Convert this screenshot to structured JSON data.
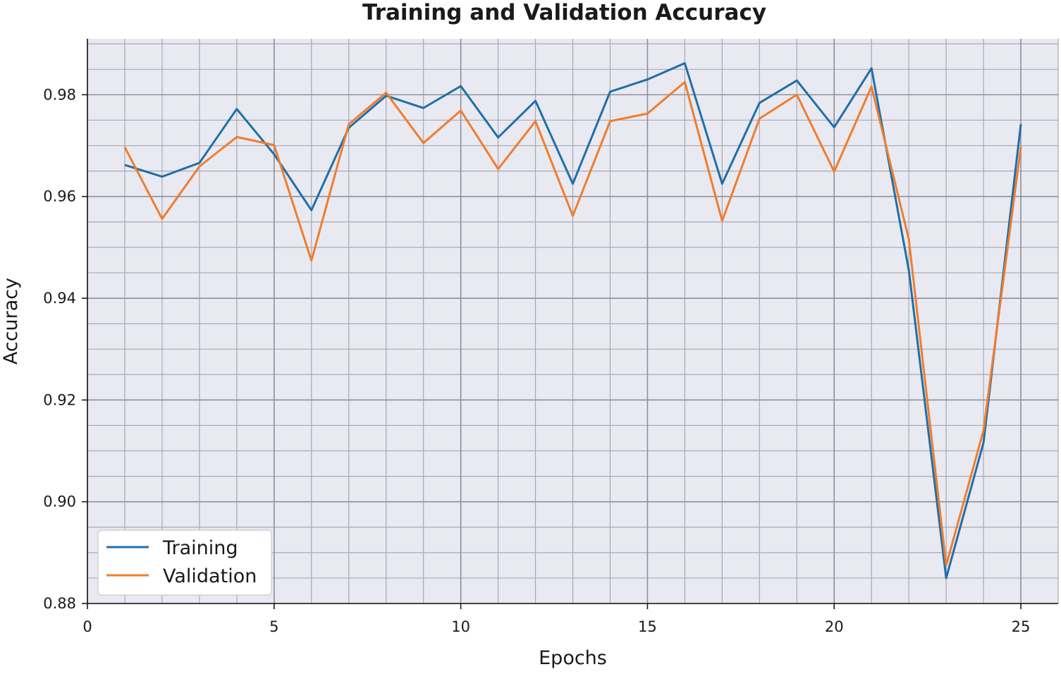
{
  "chart_data": {
    "type": "line",
    "title": "Training and Validation Accuracy",
    "xlabel": "Epochs",
    "ylabel": "Accuracy",
    "xlim": [
      0,
      26
    ],
    "ylim": [
      0.88,
      0.991
    ],
    "x_ticks": [
      0,
      5,
      10,
      15,
      20,
      25
    ],
    "x_tick_labels": [
      "0",
      "5",
      "10",
      "15",
      "20",
      "25"
    ],
    "y_ticks": [
      0.88,
      0.9,
      0.92,
      0.94,
      0.96,
      0.98
    ],
    "y_tick_labels": [
      "0.88",
      "0.90",
      "0.92",
      "0.94",
      "0.96",
      "0.98"
    ],
    "grid": true,
    "minor_grid": true,
    "legend_position": "lower-left",
    "x": [
      1,
      2,
      3,
      4,
      5,
      6,
      7,
      8,
      9,
      10,
      11,
      12,
      13,
      14,
      15,
      16,
      17,
      18,
      19,
      20,
      21,
      22,
      23,
      24,
      25
    ],
    "series": [
      {
        "name": "Training",
        "color": "#1f6fa8",
        "values": [
          0.9662,
          0.9639,
          0.9666,
          0.9772,
          0.9683,
          0.9573,
          0.9735,
          0.9798,
          0.9774,
          0.9817,
          0.9716,
          0.9788,
          0.9625,
          0.9806,
          0.983,
          0.9862,
          0.9625,
          0.9784,
          0.9828,
          0.9736,
          0.9852,
          0.9455,
          0.885,
          0.9116,
          0.9742
        ]
      },
      {
        "name": "Validation",
        "color": "#f07d2e",
        "values": [
          0.9697,
          0.9556,
          0.9659,
          0.9717,
          0.9701,
          0.9474,
          0.9742,
          0.9804,
          0.9705,
          0.9769,
          0.9654,
          0.9748,
          0.9562,
          0.9748,
          0.9763,
          0.9825,
          0.9552,
          0.9753,
          0.98,
          0.9649,
          0.9816,
          0.9516,
          0.8875,
          0.914,
          0.9697
        ]
      }
    ]
  }
}
